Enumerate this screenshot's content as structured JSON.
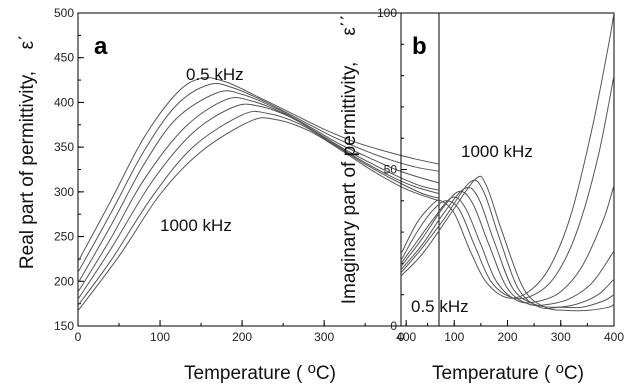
{
  "chart_data": [
    {
      "type": "line",
      "panel_label": "a",
      "xlabel": "Temperature ( ",
      "xlabel_sup": "o",
      "xlabel_unit": "C)",
      "ylabel": "Real part of permittivity,",
      "ylabel_symbol": "ε΄",
      "xlim": [
        0,
        440
      ],
      "ylim": [
        150,
        500
      ],
      "xticks": [
        "0",
        "100",
        "200",
        "300",
        "400"
      ],
      "yticks": [
        "150",
        "200",
        "250",
        "300",
        "350",
        "400",
        "450",
        "500"
      ],
      "annotations": [
        "0.5 kHz",
        "1000 kHz"
      ],
      "series": [
        {
          "x": [
            0,
            40,
            80,
            120,
            150,
            180,
            220,
            260,
            300,
            340,
            380,
            410,
            440
          ],
          "y": [
            222,
            290,
            360,
            410,
            427,
            423,
            406,
            388,
            370,
            355,
            344,
            337,
            331
          ]
        },
        {
          "x": [
            0,
            40,
            80,
            120,
            160,
            190,
            230,
            270,
            310,
            350,
            380,
            410,
            440
          ],
          "y": [
            210,
            276,
            345,
            397,
            420,
            416,
            400,
            381,
            362,
            346,
            336,
            328,
            323
          ]
        },
        {
          "x": [
            0,
            40,
            80,
            120,
            170,
            200,
            240,
            280,
            320,
            360,
            390,
            420,
            440
          ],
          "y": [
            198,
            262,
            330,
            382,
            411,
            409,
            394,
            374,
            353,
            336,
            324,
            315,
            310
          ]
        },
        {
          "x": [
            0,
            40,
            80,
            130,
            180,
            210,
            250,
            290,
            330,
            370,
            400,
            420,
            440
          ],
          "y": [
            188,
            248,
            313,
            372,
            403,
            402,
            388,
            367,
            345,
            326,
            313,
            306,
            302
          ]
        },
        {
          "x": [
            0,
            40,
            90,
            140,
            190,
            220,
            260,
            300,
            340,
            380,
            410,
            440
          ],
          "y": [
            180,
            236,
            311,
            366,
            395,
            396,
            383,
            361,
            338,
            318,
            306,
            298
          ]
        },
        {
          "x": [
            0,
            40,
            90,
            140,
            200,
            230,
            270,
            310,
            350,
            390,
            420,
            440
          ],
          "y": [
            173,
            223,
            294,
            350,
            386,
            388,
            376,
            354,
            331,
            311,
            298,
            293
          ]
        },
        {
          "x": [
            0,
            50,
            100,
            150,
            210,
            240,
            280,
            320,
            360,
            400,
            440
          ],
          "y": [
            167,
            228,
            297,
            345,
            379,
            381,
            369,
            347,
            323,
            303,
            290
          ]
        }
      ]
    },
    {
      "type": "line",
      "panel_label": "b",
      "xlabel": "Temperature ( ",
      "xlabel_sup": "o",
      "xlabel_unit": "C)",
      "ylabel": "Imaginary part of permittivity,",
      "ylabel_symbol": "ε΄΄",
      "xlim": [
        0,
        400
      ],
      "ylim": [
        0,
        100
      ],
      "xticks": [
        "0",
        "100",
        "200",
        "300",
        "400"
      ],
      "yticks": [
        "0",
        "50",
        "100"
      ],
      "annotations": [
        "1000 kHz",
        "0.5 kHz"
      ],
      "series": [
        {
          "x": [
            0,
            30,
            60,
            75,
            100,
            130,
            160,
            200,
            240,
            280,
            320,
            360,
            390,
            400
          ],
          "y": [
            23,
            33,
            39,
            40,
            36,
            24,
            14,
            9,
            11,
            19,
            36,
            64,
            90,
            100
          ]
        },
        {
          "x": [
            0,
            30,
            60,
            85,
            110,
            140,
            170,
            210,
            250,
            290,
            330,
            370,
            400
          ],
          "y": [
            21,
            30,
            37,
            40,
            37,
            25,
            14,
            9,
            10,
            16,
            30,
            54,
            80
          ]
        },
        {
          "x": [
            0,
            30,
            60,
            95,
            120,
            150,
            180,
            220,
            260,
            300,
            340,
            380,
            400
          ],
          "y": [
            20,
            27,
            34,
            41,
            38,
            26,
            14,
            8,
            8,
            11,
            19,
            34,
            45
          ]
        },
        {
          "x": [
            0,
            40,
            80,
            110,
            135,
            165,
            200,
            240,
            280,
            320,
            360,
            400
          ],
          "y": [
            19,
            28,
            38,
            43,
            39,
            26,
            12,
            7,
            7,
            9,
            14,
            24
          ]
        },
        {
          "x": [
            0,
            40,
            80,
            120,
            145,
            175,
            210,
            250,
            290,
            330,
            370,
            400
          ],
          "y": [
            18,
            26,
            36,
            44,
            41,
            27,
            12,
            7,
            6,
            7,
            10,
            15
          ]
        },
        {
          "x": [
            0,
            40,
            80,
            130,
            155,
            185,
            220,
            260,
            300,
            340,
            380,
            400
          ],
          "y": [
            17,
            25,
            34,
            46,
            43,
            28,
            12,
            6,
            6,
            6,
            8,
            10
          ]
        },
        {
          "x": [
            0,
            40,
            90,
            140,
            160,
            190,
            230,
            270,
            310,
            350,
            390,
            400
          ],
          "y": [
            16,
            23,
            35,
            47,
            45,
            30,
            12,
            6,
            5,
            5,
            6,
            7
          ]
        }
      ]
    }
  ]
}
